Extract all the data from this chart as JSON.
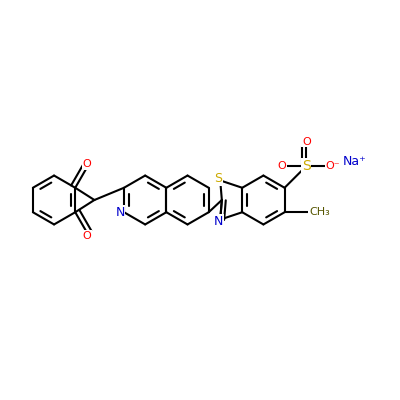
{
  "background_color": "#ffffff",
  "bond_color": "#000000",
  "bond_width": 1.5,
  "atom_colors": {
    "O": "#ff0000",
    "N": "#0000cc",
    "S": "#ccaa00",
    "Na": "#0000cc",
    "C": "#000000"
  },
  "font_size_atom": 8,
  "figsize": [
    4.0,
    4.0
  ],
  "dpi": 100
}
